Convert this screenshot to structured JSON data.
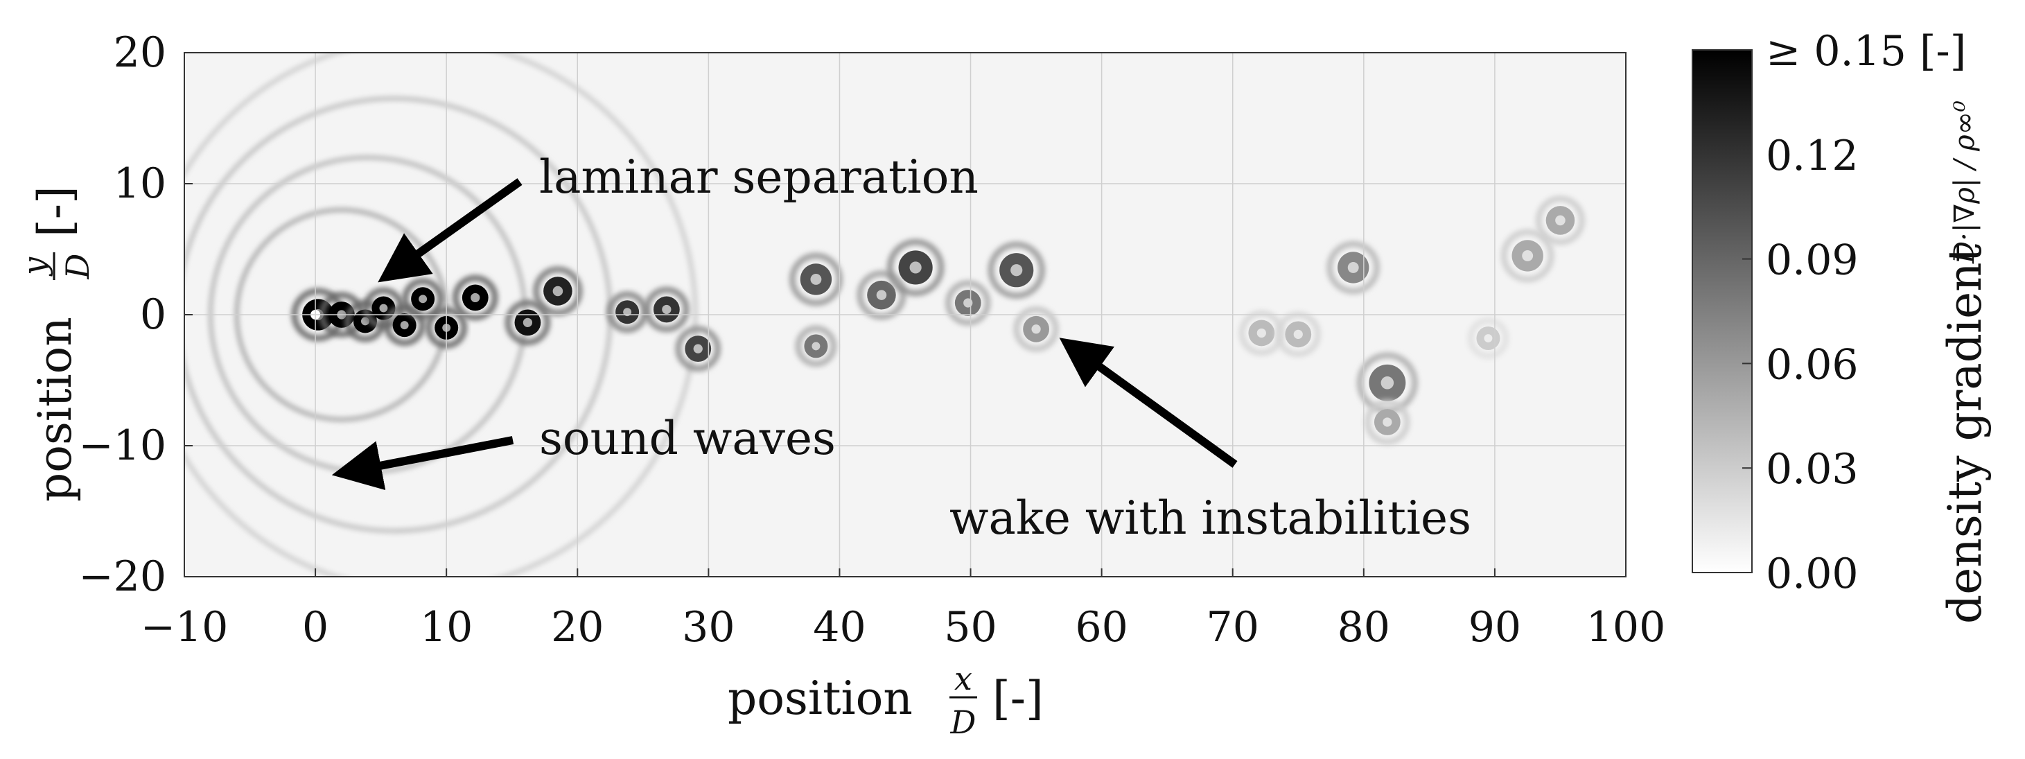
{
  "chart_data": {
    "type": "heatmap",
    "title": "",
    "xlabel": {
      "word": "position",
      "frac_num": "x",
      "frac_den": "D",
      "unit": "[-]"
    },
    "ylabel": {
      "word": "position",
      "frac_num": "y",
      "frac_den": "D",
      "unit": "[-]"
    },
    "xlim": [
      -10,
      100
    ],
    "ylim": [
      -20,
      20
    ],
    "xticks": [
      -10,
      0,
      10,
      20,
      30,
      40,
      50,
      60,
      70,
      80,
      90,
      100
    ],
    "yticks": [
      -20,
      -10,
      0,
      10,
      20
    ],
    "xtick_labels": [
      "−10",
      "0",
      "10",
      "20",
      "30",
      "40",
      "50",
      "60",
      "70",
      "80",
      "90",
      "100"
    ],
    "ytick_labels": [
      "−20",
      "−10",
      "0",
      "10",
      "20"
    ],
    "grid": true,
    "colormap": "white-to-black",
    "colorbar": {
      "range": [
        0.0,
        0.15
      ],
      "ticks": [
        0.0,
        0.03,
        0.06,
        0.09,
        0.12,
        0.15
      ],
      "tick_labels": [
        "0.00",
        "0.03",
        "0.06",
        "0.09",
        "0.12",
        "≥ 0.15  [-]"
      ],
      "label": "density gradient",
      "label_math": "D·|∇ρ| / ρ∞⁰"
    },
    "annotations": [
      {
        "text": "laminar separation",
        "arrow_to": [
          5.8,
          3.2
        ]
      },
      {
        "text": "sound waves",
        "arrow_to": [
          2.5,
          -12
        ]
      },
      {
        "text": "wake with instabilities",
        "arrow_to": [
          57.8,
          -2.5
        ]
      }
    ],
    "cylinder_center": [
      0,
      0
    ],
    "vortices": [
      {
        "x": 0.2,
        "y": 0.0,
        "r": 1.2,
        "v": 0.15
      },
      {
        "x": 2.0,
        "y": 0.0,
        "r": 1.0,
        "v": 0.15
      },
      {
        "x": 3.8,
        "y": -0.5,
        "r": 0.9,
        "v": 0.15
      },
      {
        "x": 5.2,
        "y": 0.5,
        "r": 0.9,
        "v": 0.15
      },
      {
        "x": 6.8,
        "y": -0.8,
        "r": 0.9,
        "v": 0.15
      },
      {
        "x": 8.2,
        "y": 1.2,
        "r": 0.9,
        "v": 0.15
      },
      {
        "x": 10.0,
        "y": -1.0,
        "r": 0.9,
        "v": 0.15
      },
      {
        "x": 12.2,
        "y": 1.3,
        "r": 1.0,
        "v": 0.15
      },
      {
        "x": 16.2,
        "y": -0.6,
        "r": 1.0,
        "v": 0.14
      },
      {
        "x": 18.5,
        "y": 1.8,
        "r": 1.1,
        "v": 0.13
      },
      {
        "x": 23.8,
        "y": 0.2,
        "r": 0.9,
        "v": 0.12
      },
      {
        "x": 26.8,
        "y": 0.4,
        "r": 1.0,
        "v": 0.12
      },
      {
        "x": 29.2,
        "y": -2.6,
        "r": 1.0,
        "v": 0.11
      },
      {
        "x": 38.2,
        "y": 2.7,
        "r": 1.2,
        "v": 0.1
      },
      {
        "x": 38.2,
        "y": -2.4,
        "r": 0.9,
        "v": 0.08
      },
      {
        "x": 43.2,
        "y": 1.5,
        "r": 1.1,
        "v": 0.09
      },
      {
        "x": 45.8,
        "y": 3.6,
        "r": 1.3,
        "v": 0.11
      },
      {
        "x": 49.8,
        "y": 0.9,
        "r": 1.0,
        "v": 0.08
      },
      {
        "x": 53.5,
        "y": 3.4,
        "r": 1.3,
        "v": 0.1
      },
      {
        "x": 55.0,
        "y": -1.1,
        "r": 1.0,
        "v": 0.06
      },
      {
        "x": 72.2,
        "y": -1.4,
        "r": 1.0,
        "v": 0.04
      },
      {
        "x": 75.0,
        "y": -1.5,
        "r": 1.0,
        "v": 0.04
      },
      {
        "x": 79.2,
        "y": 3.6,
        "r": 1.2,
        "v": 0.07
      },
      {
        "x": 81.8,
        "y": -5.2,
        "r": 1.4,
        "v": 0.08
      },
      {
        "x": 81.8,
        "y": -8.2,
        "r": 1.0,
        "v": 0.05
      },
      {
        "x": 89.5,
        "y": -1.8,
        "r": 0.9,
        "v": 0.03
      },
      {
        "x": 92.5,
        "y": 4.5,
        "r": 1.2,
        "v": 0.05
      },
      {
        "x": 95.0,
        "y": 7.2,
        "r": 1.1,
        "v": 0.05
      }
    ],
    "sound_waves": [
      {
        "cx": 2.0,
        "cy": 0.0,
        "r": 8.0,
        "v": 0.06
      },
      {
        "cx": 4.0,
        "cy": 0.0,
        "r": 12.0,
        "v": 0.05
      },
      {
        "cx": 6.0,
        "cy": 0.0,
        "r": 16.5,
        "v": 0.045
      },
      {
        "cx": 8.0,
        "cy": 0.0,
        "r": 21.0,
        "v": 0.035
      }
    ]
  }
}
